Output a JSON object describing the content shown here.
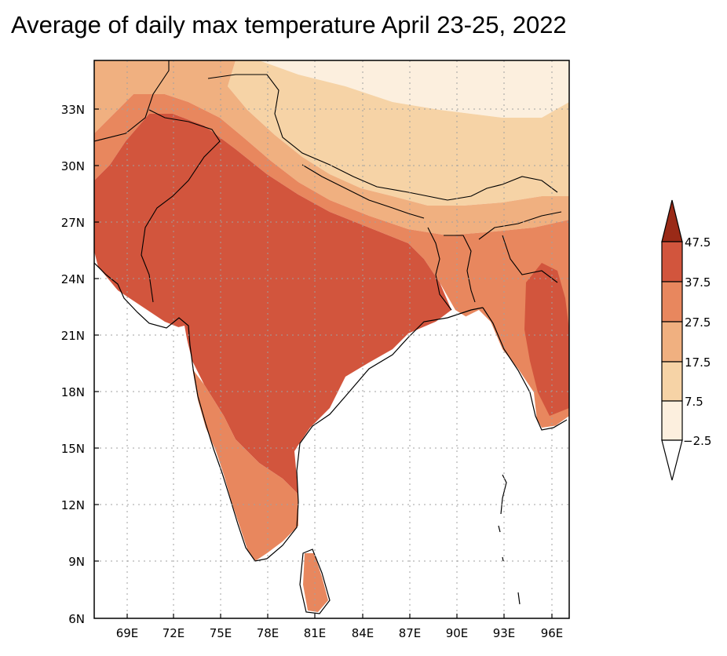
{
  "title": "Average of daily max temperature April 23-25, 2022",
  "map": {
    "lon_ticks": [
      "69E",
      "72E",
      "75E",
      "78E",
      "81E",
      "84E",
      "87E",
      "90E",
      "93E",
      "96E"
    ],
    "lat_ticks": [
      "33N",
      "30N",
      "27N",
      "24N",
      "21N",
      "18N",
      "15N",
      "12N",
      "9N",
      "6N"
    ],
    "lon_range": [
      67,
      97
    ],
    "lat_range": [
      6,
      35
    ]
  },
  "colorbar": {
    "labels": [
      "47.5",
      "37.5",
      "27.5",
      "17.5",
      "7.5",
      "−2.5"
    ],
    "colors": {
      "above": "#9a2a17",
      "c37_47": "#d2553d",
      "c27_37": "#e8875e",
      "c17_27": "#f0b080",
      "c7_17": "#f6d3a6",
      "cm2_7": "#fcefde",
      "below": "#ffffff"
    }
  }
}
